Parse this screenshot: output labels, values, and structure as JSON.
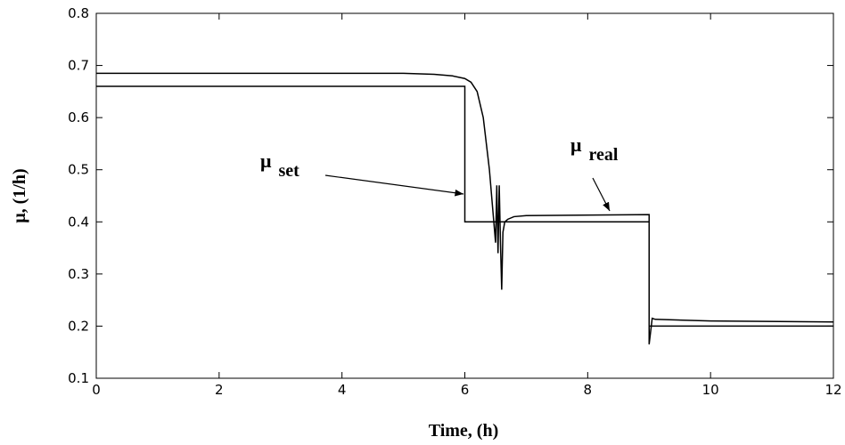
{
  "chart_data": {
    "type": "line",
    "xlabel": "Time, (h)",
    "ylabel": "μ, (1/h)",
    "xlim": [
      0,
      12
    ],
    "ylim": [
      0.1,
      0.8
    ],
    "xticks": [
      0,
      2,
      4,
      6,
      8,
      10,
      12
    ],
    "yticks": [
      0.1,
      0.2,
      0.3,
      0.4,
      0.5,
      0.6,
      0.7,
      0.8
    ],
    "series": [
      {
        "color": "#000000",
        "x": [
          0,
          6,
          6,
          9,
          9,
          12
        ],
        "values": [
          0.66,
          0.66,
          0.4,
          0.4,
          0.2,
          0.2
        ]
      },
      {
        "color": "#000000",
        "x": [
          0,
          5,
          5.5,
          5.8,
          6.0,
          6.1,
          6.2,
          6.3,
          6.4,
          6.45,
          6.5,
          6.52,
          6.54,
          6.56,
          6.58,
          6.6,
          6.62,
          6.65,
          6.7,
          6.8,
          7,
          9,
          9,
          9.05,
          9.1,
          10,
          12
        ],
        "values": [
          0.685,
          0.685,
          0.683,
          0.68,
          0.675,
          0.668,
          0.65,
          0.6,
          0.5,
          0.43,
          0.36,
          0.47,
          0.34,
          0.47,
          0.36,
          0.27,
          0.38,
          0.4,
          0.405,
          0.41,
          0.412,
          0.414,
          0.165,
          0.215,
          0.213,
          0.21,
          0.208
        ]
      }
    ],
    "annotations": [
      {
        "symbol": "μ",
        "sub": "set"
      },
      {
        "symbol": "μ",
        "sub": "real"
      }
    ]
  }
}
